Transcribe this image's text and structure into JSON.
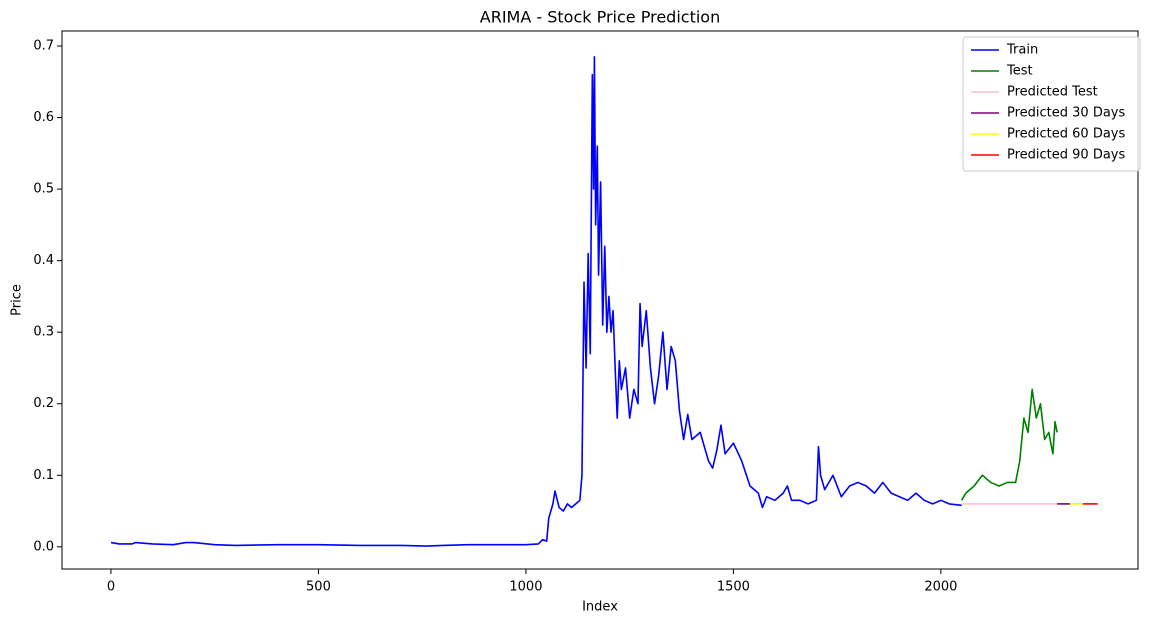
{
  "chart_data": {
    "type": "line",
    "title": "ARIMA - Stock Price Prediction",
    "x_label": "Index",
    "y_label": "Price",
    "xlim": [
      -118,
      2475
    ],
    "ylim": [
      -0.031,
      0.721
    ],
    "xticks": [
      0,
      500,
      1000,
      1500,
      2000
    ],
    "yticks": [
      {
        "value": 0,
        "label": "0.0"
      },
      0.1,
      0.2,
      0.3,
      0.4,
      0.5,
      0.6,
      0.7
    ],
    "grid": false,
    "legend": "upper right",
    "series": [
      {
        "name": "Train",
        "color": "#0000ff",
        "x": [
          0,
          20,
          50,
          60,
          100,
          150,
          180,
          200,
          250,
          300,
          400,
          500,
          600,
          700,
          760,
          800,
          860,
          900,
          1000,
          1030,
          1040,
          1050,
          1055,
          1060,
          1065,
          1070,
          1080,
          1090,
          1100,
          1110,
          1120,
          1130,
          1135,
          1140,
          1145,
          1150,
          1155,
          1160,
          1163,
          1165,
          1168,
          1172,
          1175,
          1180,
          1185,
          1190,
          1195,
          1200,
          1205,
          1210,
          1215,
          1220,
          1225,
          1230,
          1240,
          1250,
          1260,
          1270,
          1275,
          1280,
          1290,
          1300,
          1310,
          1320,
          1330,
          1340,
          1350,
          1360,
          1370,
          1380,
          1390,
          1400,
          1420,
          1440,
          1450,
          1460,
          1470,
          1480,
          1500,
          1520,
          1540,
          1560,
          1570,
          1580,
          1600,
          1620,
          1630,
          1640,
          1660,
          1680,
          1700,
          1705,
          1710,
          1720,
          1740,
          1760,
          1780,
          1800,
          1820,
          1840,
          1860,
          1880,
          1900,
          1920,
          1940,
          1960,
          1980,
          2000,
          2020,
          2050
        ],
        "values": [
          0.006,
          0.004,
          0.004,
          0.006,
          0.004,
          0.003,
          0.006,
          0.006,
          0.003,
          0.002,
          0.003,
          0.003,
          0.002,
          0.002,
          0.001,
          0.002,
          0.003,
          0.003,
          0.003,
          0.004,
          0.01,
          0.008,
          0.04,
          0.05,
          0.06,
          0.078,
          0.055,
          0.05,
          0.06,
          0.055,
          0.06,
          0.065,
          0.1,
          0.37,
          0.25,
          0.41,
          0.27,
          0.66,
          0.5,
          0.685,
          0.45,
          0.56,
          0.38,
          0.51,
          0.31,
          0.42,
          0.3,
          0.35,
          0.3,
          0.33,
          0.25,
          0.18,
          0.26,
          0.22,
          0.25,
          0.18,
          0.22,
          0.2,
          0.34,
          0.28,
          0.33,
          0.25,
          0.2,
          0.24,
          0.3,
          0.22,
          0.28,
          0.26,
          0.19,
          0.15,
          0.185,
          0.15,
          0.16,
          0.12,
          0.11,
          0.135,
          0.17,
          0.13,
          0.145,
          0.12,
          0.085,
          0.075,
          0.055,
          0.07,
          0.065,
          0.075,
          0.085,
          0.065,
          0.065,
          0.06,
          0.065,
          0.14,
          0.1,
          0.08,
          0.1,
          0.07,
          0.085,
          0.09,
          0.085,
          0.075,
          0.09,
          0.075,
          0.07,
          0.065,
          0.075,
          0.065,
          0.06,
          0.065,
          0.06,
          0.058
        ]
      },
      {
        "name": "Test",
        "color": "#008000",
        "x": [
          2050,
          2060,
          2080,
          2100,
          2120,
          2140,
          2160,
          2180,
          2190,
          2200,
          2210,
          2220,
          2230,
          2240,
          2250,
          2260,
          2270,
          2275,
          2280
        ],
        "values": [
          0.065,
          0.075,
          0.085,
          0.1,
          0.09,
          0.085,
          0.09,
          0.09,
          0.12,
          0.18,
          0.16,
          0.22,
          0.18,
          0.2,
          0.15,
          0.16,
          0.13,
          0.175,
          0.16
        ]
      },
      {
        "name": "Predicted Test",
        "color": "#ffc0cb",
        "x": [
          2050,
          2280
        ],
        "values": [
          0.06,
          0.06
        ]
      },
      {
        "name": "Predicted 30 Days",
        "color": "#800080",
        "x": [
          2280,
          2311
        ],
        "values": [
          0.06,
          0.06
        ]
      },
      {
        "name": "Predicted 60 Days",
        "color": "#ffff00",
        "x": [
          2311,
          2342
        ],
        "values": [
          0.06,
          0.06
        ]
      },
      {
        "name": "Predicted 90 Days",
        "color": "#ff0000",
        "x": [
          2342,
          2378
        ],
        "values": [
          0.06,
          0.06
        ]
      }
    ]
  }
}
